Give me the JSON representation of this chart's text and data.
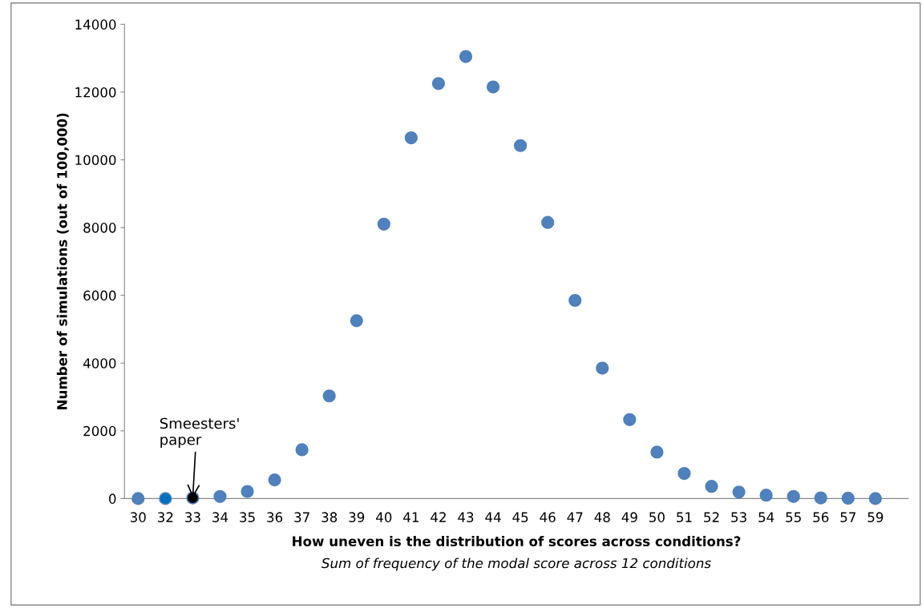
{
  "chart_data": {
    "type": "scatter",
    "categories": [
      "30",
      "32",
      "33",
      "34",
      "35",
      "36",
      "37",
      "38",
      "39",
      "40",
      "41",
      "42",
      "43",
      "44",
      "45",
      "46",
      "47",
      "48",
      "49",
      "50",
      "51",
      "52",
      "53",
      "54",
      "55",
      "56",
      "57",
      "59"
    ],
    "values": [
      0,
      0,
      20,
      60,
      210,
      550,
      1440,
      3030,
      5250,
      8100,
      10650,
      12250,
      13050,
      12150,
      10420,
      8150,
      5850,
      3850,
      2330,
      1370,
      740,
      360,
      190,
      100,
      60,
      20,
      10,
      0
    ],
    "colors": [
      "#4f81bd",
      "#0070c0",
      "#000000",
      "#4f81bd",
      "#4f81bd",
      "#4f81bd",
      "#4f81bd",
      "#4f81bd",
      "#4f81bd",
      "#4f81bd",
      "#4f81bd",
      "#4f81bd",
      "#4f81bd",
      "#4f81bd",
      "#4f81bd",
      "#4f81bd",
      "#4f81bd",
      "#4f81bd",
      "#4f81bd",
      "#4f81bd",
      "#4f81bd",
      "#4f81bd",
      "#4f81bd",
      "#4f81bd",
      "#4f81bd",
      "#4f81bd",
      "#4f81bd",
      "#4f81bd"
    ],
    "marker": "circle",
    "ylim": [
      0,
      14000
    ],
    "yticks": [
      0,
      2000,
      4000,
      6000,
      8000,
      10000,
      12000,
      14000
    ],
    "grid": false,
    "legend": false,
    "xlabel": "How uneven is the distribution of scores across conditions?",
    "ylabel": "Number of simulations (out of 100,000)",
    "annotations": [
      {
        "text": "Smeesters'\npaper",
        "x": "33",
        "y": 20
      },
      "Sum of frequency of the modal score across 12 conditions"
    ]
  }
}
